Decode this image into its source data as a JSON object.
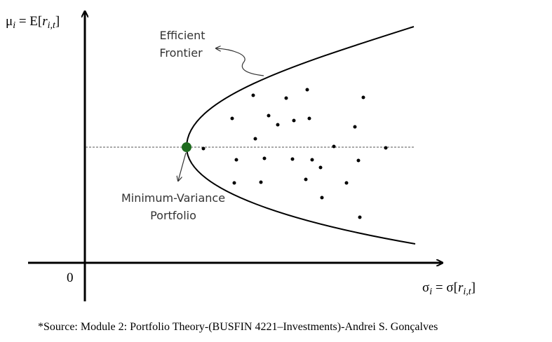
{
  "y_axis_label": {
    "symbol": "μ",
    "subscript": "i",
    "middle": " = E[",
    "variable": "r",
    "variable_subscript": "i,t",
    "close": "]"
  },
  "x_axis_label": {
    "symbol": "σ",
    "subscript": "i",
    "middle": " = σ[",
    "variable": "r",
    "variable_subscript": "i,t",
    "close": "]"
  },
  "origin_label": "0",
  "frontier_label": [
    "Efficient",
    "Frontier"
  ],
  "min_variance_label": [
    "Minimum-Variance",
    "Portfolio"
  ],
  "source": "*Source: Module 2: Portfolio Theory-(BUSFIN 4221–Investments)-Andrei S. Gonçalves"
}
